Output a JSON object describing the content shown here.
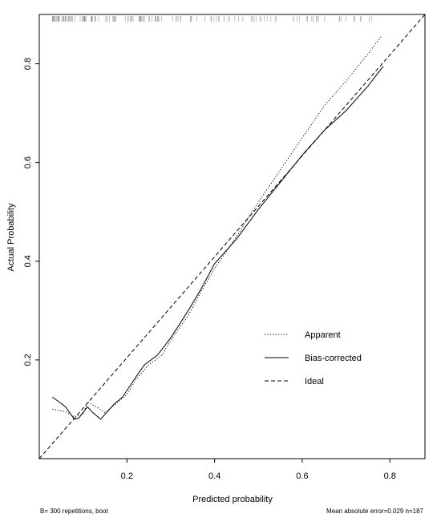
{
  "chart_data": {
    "type": "line",
    "xlabel": "Predicted probability",
    "ylabel": "Actual Probability",
    "xlim": [
      0.0,
      0.88
    ],
    "ylim": [
      0.0,
      0.9
    ],
    "x_ticks": [
      0.2,
      0.4,
      0.6,
      0.8
    ],
    "y_ticks": [
      0.2,
      0.4,
      0.6,
      0.8
    ],
    "grid": false,
    "legend_position": "bottom-right",
    "series": [
      {
        "name": "Apparent",
        "style": "dotted",
        "color": "#000000",
        "points": [
          [
            0.03,
            0.1
          ],
          [
            0.06,
            0.095
          ],
          [
            0.08,
            0.085
          ],
          [
            0.1,
            0.09
          ],
          [
            0.11,
            0.115
          ],
          [
            0.13,
            0.105
          ],
          [
            0.15,
            0.093
          ],
          [
            0.18,
            0.115
          ],
          [
            0.2,
            0.13
          ],
          [
            0.22,
            0.16
          ],
          [
            0.25,
            0.19
          ],
          [
            0.28,
            0.21
          ],
          [
            0.3,
            0.24
          ],
          [
            0.34,
            0.29
          ],
          [
            0.37,
            0.34
          ],
          [
            0.4,
            0.385
          ],
          [
            0.45,
            0.45
          ],
          [
            0.5,
            0.52
          ],
          [
            0.55,
            0.585
          ],
          [
            0.6,
            0.65
          ],
          [
            0.65,
            0.715
          ],
          [
            0.7,
            0.765
          ],
          [
            0.75,
            0.82
          ],
          [
            0.78,
            0.855
          ]
        ]
      },
      {
        "name": "Bias-corrected",
        "style": "solid",
        "color": "#000000",
        "points": [
          [
            0.03,
            0.125
          ],
          [
            0.06,
            0.105
          ],
          [
            0.08,
            0.08
          ],
          [
            0.09,
            0.082
          ],
          [
            0.11,
            0.105
          ],
          [
            0.12,
            0.095
          ],
          [
            0.14,
            0.08
          ],
          [
            0.17,
            0.11
          ],
          [
            0.19,
            0.125
          ],
          [
            0.22,
            0.165
          ],
          [
            0.24,
            0.19
          ],
          [
            0.27,
            0.21
          ],
          [
            0.3,
            0.245
          ],
          [
            0.34,
            0.3
          ],
          [
            0.37,
            0.345
          ],
          [
            0.4,
            0.395
          ],
          [
            0.45,
            0.445
          ],
          [
            0.5,
            0.505
          ],
          [
            0.55,
            0.56
          ],
          [
            0.6,
            0.615
          ],
          [
            0.65,
            0.665
          ],
          [
            0.7,
            0.705
          ],
          [
            0.75,
            0.755
          ],
          [
            0.785,
            0.795
          ]
        ]
      },
      {
        "name": "Ideal",
        "style": "dashed",
        "color": "#000000",
        "points": [
          [
            0.0,
            0.0
          ],
          [
            0.88,
            0.9
          ]
        ]
      }
    ],
    "footer_left": "B= 300 repetitions, boot",
    "footer_right": "Mean absolute error=0.029 n=187"
  }
}
